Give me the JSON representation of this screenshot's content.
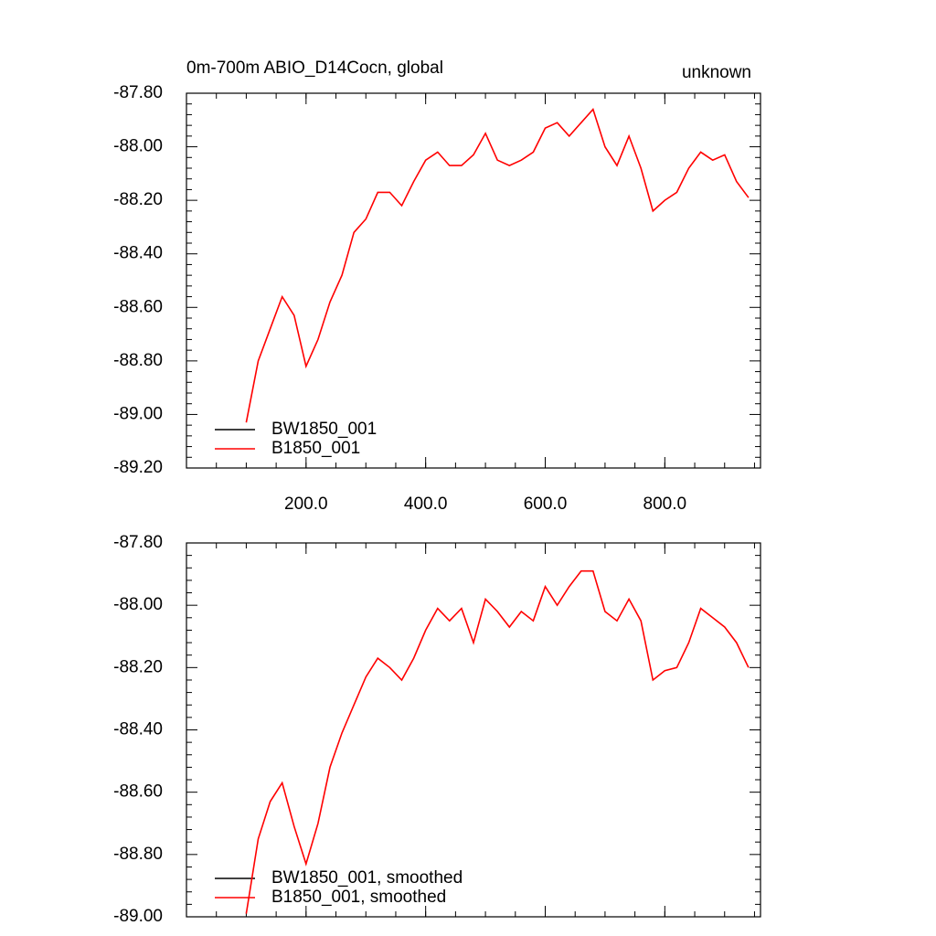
{
  "chart_data": [
    {
      "type": "line",
      "title": "0m-700m ABIO_D14Cocn, global",
      "right_title": "unknown",
      "x": [
        100,
        120,
        140,
        160,
        180,
        200,
        220,
        240,
        260,
        280,
        300,
        320,
        340,
        360,
        380,
        400,
        420,
        440,
        460,
        480,
        500,
        520,
        540,
        560,
        580,
        600,
        620,
        640,
        660,
        680,
        700,
        720,
        740,
        760,
        780,
        800,
        820,
        840,
        860,
        880,
        900,
        920,
        940
      ],
      "series": [
        {
          "name": "BW1850_001",
          "color": "#000000",
          "values": [
            null,
            null,
            null,
            null,
            null,
            null,
            null,
            null,
            null,
            null,
            null,
            null,
            null,
            null,
            null,
            null,
            null,
            null,
            null,
            null,
            null,
            null,
            null,
            null,
            null,
            null,
            null,
            null,
            null,
            null,
            null,
            null,
            null,
            null,
            null,
            null,
            null,
            null,
            null,
            null,
            null,
            null,
            null
          ]
        },
        {
          "name": "B1850_001",
          "color": "#ff0000",
          "values": [
            -89.03,
            -88.8,
            -88.68,
            -88.56,
            -88.63,
            -88.82,
            -88.72,
            -88.58,
            -88.48,
            -88.32,
            -88.27,
            -88.17,
            -88.17,
            -88.22,
            -88.13,
            -88.05,
            -88.02,
            -88.07,
            -88.07,
            -88.03,
            -87.95,
            -88.05,
            -88.07,
            -88.05,
            -88.02,
            -87.93,
            -87.91,
            -87.96,
            -87.91,
            -87.86,
            -88.0,
            -88.07,
            -87.96,
            -88.08,
            -88.24,
            -88.2,
            -88.17,
            -88.08,
            -88.02,
            -88.05,
            -88.03,
            -88.13,
            -88.19
          ]
        }
      ],
      "xlim": [
        0,
        960
      ],
      "xticks": [
        {
          "value": 200,
          "label": "200.0"
        },
        {
          "value": 400,
          "label": "400.0"
        },
        {
          "value": 600,
          "label": "600.0"
        },
        {
          "value": 800,
          "label": "800.0"
        }
      ],
      "xtick_labels": true,
      "ylim": [
        -89.2,
        -87.8
      ],
      "yticks": [
        {
          "value": -87.8,
          "label": "-87.80"
        },
        {
          "value": -88.0,
          "label": "-88.00"
        },
        {
          "value": -88.2,
          "label": "-88.20"
        },
        {
          "value": -88.4,
          "label": "-88.40"
        },
        {
          "value": -88.6,
          "label": "-88.60"
        },
        {
          "value": -88.8,
          "label": "-88.80"
        },
        {
          "value": -89.0,
          "label": "-89.00"
        },
        {
          "value": -89.2,
          "label": "-89.20"
        }
      ],
      "legend": "lower left",
      "grid": false
    },
    {
      "type": "line",
      "x": [
        100,
        120,
        140,
        160,
        180,
        200,
        220,
        240,
        260,
        280,
        300,
        320,
        340,
        360,
        380,
        400,
        420,
        440,
        460,
        480,
        500,
        520,
        540,
        560,
        580,
        600,
        620,
        640,
        660,
        680,
        700,
        720,
        740,
        760,
        780,
        800,
        820,
        840,
        860,
        880,
        900,
        920,
        940
      ],
      "series": [
        {
          "name": "BW1850_001, smoothed",
          "color": "#000000",
          "values": [
            null,
            null,
            null,
            null,
            null,
            null,
            null,
            null,
            null,
            null,
            null,
            null,
            null,
            null,
            null,
            null,
            null,
            null,
            null,
            null,
            null,
            null,
            null,
            null,
            null,
            null,
            null,
            null,
            null,
            null,
            null,
            null,
            null,
            null,
            null,
            null,
            null,
            null,
            null,
            null,
            null,
            null,
            null
          ]
        },
        {
          "name": "B1850_001, smoothed",
          "color": "#ff0000",
          "values": [
            -88.99,
            -88.75,
            -88.63,
            -88.57,
            -88.71,
            -88.83,
            -88.7,
            -88.52,
            -88.41,
            -88.32,
            -88.23,
            -88.17,
            -88.2,
            -88.24,
            -88.17,
            -88.08,
            -88.01,
            -88.05,
            -88.01,
            -88.12,
            -87.98,
            -88.02,
            -88.07,
            -88.02,
            -88.05,
            -87.94,
            -88.0,
            -87.94,
            -87.89,
            -87.89,
            -88.02,
            -88.05,
            -87.98,
            -88.05,
            -88.24,
            -88.21,
            -88.2,
            -88.12,
            -88.01,
            -88.04,
            -88.07,
            -88.12,
            -88.2
          ]
        }
      ],
      "xlim": [
        0,
        960
      ],
      "xticks": [
        200,
        400,
        600,
        800
      ],
      "xtick_labels": false,
      "ylim": [
        -89.0,
        -87.8
      ],
      "yticks": [
        {
          "value": -87.8,
          "label": "-87.80"
        },
        {
          "value": -88.0,
          "label": "-88.00"
        },
        {
          "value": -88.2,
          "label": "-88.20"
        },
        {
          "value": -88.4,
          "label": "-88.40"
        },
        {
          "value": -88.6,
          "label": "-88.60"
        },
        {
          "value": -88.8,
          "label": "-88.80"
        },
        {
          "value": -89.0,
          "label": "-89.00"
        }
      ],
      "legend": "lower left",
      "grid": false
    }
  ]
}
